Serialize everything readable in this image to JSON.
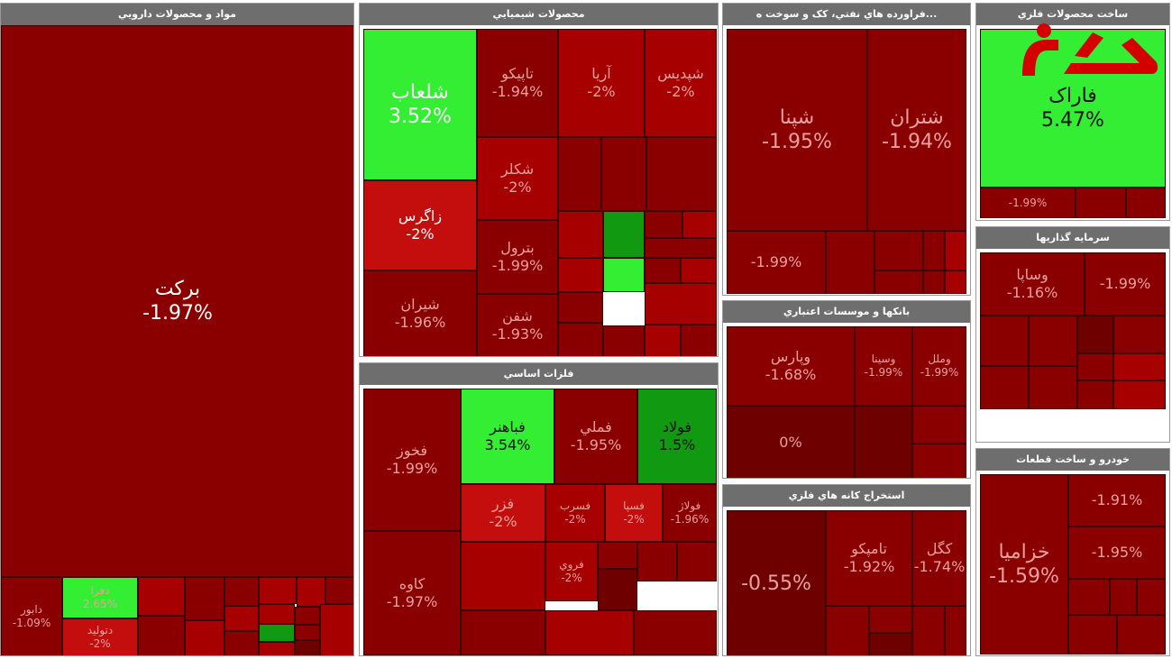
{
  "colors": {
    "deep_red": "#6e0000",
    "dark_red": "#8a0000",
    "red": "#a60000",
    "light_red": "#c40d0d",
    "light_green": "#33ee33",
    "green": "#119911",
    "dark_green": "#0d6b0d",
    "header_bg": "#6e6e6e",
    "label_bright": "#ffffff",
    "label_dim": "#e8a0a0"
  },
  "logo": {
    "icon": "red-brand-logo-icon"
  },
  "chart_data": {
    "type": "treemap",
    "unit": "%",
    "sectors": [
      {
        "name": "مواد و محصولات دارويي",
        "tiles": [
          {
            "symbol": "برکت",
            "change": -1.97,
            "color": "dark_red",
            "text": "bright"
          },
          {
            "symbol": "دابور",
            "change": -1.09,
            "color": "dark_red",
            "text": "dim"
          },
          {
            "symbol": "دفرا",
            "change": 2.65,
            "color": "light_green",
            "text": "dim"
          },
          {
            "symbol": "دتوليد",
            "change": -2,
            "color": "light_red",
            "text": "dim"
          },
          {
            "symbol": "",
            "change": null,
            "color": "red"
          },
          {
            "symbol": "",
            "change": null,
            "color": "dark_red"
          },
          {
            "symbol": "",
            "change": null,
            "color": "dark_red"
          },
          {
            "symbol": "",
            "change": null,
            "color": "red"
          },
          {
            "symbol": "",
            "change": null,
            "color": "dark_red"
          },
          {
            "symbol": "",
            "change": null,
            "color": "red"
          },
          {
            "symbol": "",
            "change": null,
            "color": "dark_red"
          },
          {
            "symbol": "",
            "change": null,
            "color": "red"
          },
          {
            "symbol": "",
            "change": null,
            "color": "red"
          },
          {
            "symbol": "",
            "change": null,
            "color": "dark_red"
          },
          {
            "symbol": "",
            "change": null,
            "color": "green"
          },
          {
            "symbol": "",
            "change": null,
            "color": "red"
          },
          {
            "symbol": "",
            "change": null,
            "color": "dark_red"
          },
          {
            "symbol": "",
            "change": null,
            "color": "deep_red"
          },
          {
            "symbol": "",
            "change": null,
            "color": "red"
          },
          {
            "symbol": "",
            "change": null,
            "color": "dark_red"
          },
          {
            "symbol": "",
            "change": null,
            "color": "red"
          }
        ]
      },
      {
        "name": "محصولات شيميايي",
        "tiles": [
          {
            "symbol": "شلعاب",
            "change": 3.52,
            "color": "light_green",
            "text": "bright"
          },
          {
            "symbol": "زاگرس",
            "change": -2,
            "color": "light_red",
            "text": "bright"
          },
          {
            "symbol": "شيران",
            "change": -1.96,
            "color": "dark_red",
            "text": "dim"
          },
          {
            "symbol": "تاپيکو",
            "change": -1.94,
            "color": "dark_red",
            "text": "dim"
          },
          {
            "symbol": "آريا",
            "change": -2,
            "color": "red",
            "text": "dim"
          },
          {
            "symbol": "شپديس",
            "change": -2,
            "color": "red",
            "text": "dim"
          },
          {
            "symbol": "شکلر",
            "change": -2,
            "color": "red",
            "text": "dim"
          },
          {
            "symbol": "بترول",
            "change": -1.99,
            "color": "dark_red",
            "text": "dim"
          },
          {
            "symbol": "شفن",
            "change": -1.93,
            "color": "dark_red",
            "text": "dim"
          },
          {
            "symbol": "",
            "change": null,
            "color": "dark_red"
          },
          {
            "symbol": "",
            "change": null,
            "color": "dark_red"
          },
          {
            "symbol": "",
            "change": null,
            "color": "dark_red"
          },
          {
            "symbol": "",
            "change": null,
            "color": "red"
          },
          {
            "symbol": "",
            "change": null,
            "color": "green"
          },
          {
            "symbol": "",
            "change": null,
            "color": "dark_red"
          },
          {
            "symbol": "",
            "change": null,
            "color": "red"
          },
          {
            "symbol": "",
            "change": null,
            "color": "dark_red"
          },
          {
            "symbol": "",
            "change": null,
            "color": "red"
          },
          {
            "symbol": "",
            "change": null,
            "color": "light_green"
          },
          {
            "symbol": "",
            "change": null,
            "color": "dark_red"
          },
          {
            "symbol": "",
            "change": null,
            "color": "red"
          },
          {
            "symbol": "",
            "change": null,
            "color": "dark_red"
          },
          {
            "symbol": "",
            "change": null,
            "color": "red"
          },
          {
            "symbol": "",
            "change": null,
            "color": "dark_red"
          },
          {
            "symbol": "",
            "change": null,
            "color": "dark_red"
          },
          {
            "symbol": "",
            "change": null,
            "color": "red"
          },
          {
            "symbol": "",
            "change": null,
            "color": "dark_red"
          }
        ]
      },
      {
        "name": "فلزات اساسي",
        "tiles": [
          {
            "symbol": "فخوز",
            "change": -1.99,
            "color": "dark_red",
            "text": "dim"
          },
          {
            "symbol": "کاوه",
            "change": -1.97,
            "color": "dark_red",
            "text": "dim"
          },
          {
            "symbol": "فباهنر",
            "change": 3.54,
            "color": "light_green",
            "text": "dark"
          },
          {
            "symbol": "فملي",
            "change": -1.95,
            "color": "dark_red",
            "text": "dim"
          },
          {
            "symbol": "فولاد",
            "change": 1.5,
            "color": "green",
            "text": "dark"
          },
          {
            "symbol": "فزر",
            "change": -2,
            "color": "light_red",
            "text": "dim"
          },
          {
            "symbol": "فسرب",
            "change": -2,
            "color": "red",
            "text": "dim"
          },
          {
            "symbol": "فروي",
            "change": -2,
            "color": "red",
            "text": "dim"
          },
          {
            "symbol": "",
            "change": null,
            "color": "dark_red"
          },
          {
            "symbol": "فسپا",
            "change": -2,
            "color": "light_red",
            "text": "dim"
          },
          {
            "symbol": "فولاژ",
            "change": -1.96,
            "color": "dark_red",
            "text": "dim"
          },
          {
            "symbol": "",
            "change": null,
            "color": "deep_red"
          },
          {
            "symbol": "",
            "change": null,
            "color": "dark_red"
          },
          {
            "symbol": "",
            "change": null,
            "color": "dark_red"
          },
          {
            "symbol": "",
            "change": null,
            "color": "red"
          },
          {
            "symbol": "",
            "change": null,
            "color": "dark_red"
          },
          {
            "symbol": "",
            "change": null,
            "color": "red"
          },
          {
            "symbol": "",
            "change": null,
            "color": "dark_red"
          }
        ]
      },
      {
        "name": "...فراورده هاي نفتي، کک و سوخت ه",
        "tiles": [
          {
            "symbol": "شپنا",
            "change": -1.95,
            "color": "dark_red",
            "text": "dim"
          },
          {
            "symbol": "شتران",
            "change": -1.94,
            "color": "dark_red",
            "text": "dim"
          },
          {
            "symbol": "",
            "change": -1.99,
            "color": "dark_red",
            "text": "dim"
          },
          {
            "symbol": "",
            "change": null,
            "color": "dark_red"
          },
          {
            "symbol": "",
            "change": null,
            "color": "dark_red"
          },
          {
            "symbol": "",
            "change": null,
            "color": "dark_red"
          },
          {
            "symbol": "",
            "change": null,
            "color": "red"
          },
          {
            "symbol": "",
            "change": null,
            "color": "dark_red"
          },
          {
            "symbol": "",
            "change": null,
            "color": "dark_red"
          },
          {
            "symbol": "",
            "change": null,
            "color": "red"
          }
        ]
      },
      {
        "name": "بانکها و موسسات اعتباري",
        "tiles": [
          {
            "symbol": "وپارس",
            "change": -1.68,
            "color": "dark_red",
            "text": "dim"
          },
          {
            "symbol": "",
            "change": 0,
            "color": "deep_red",
            "text": "dim"
          },
          {
            "symbol": "وسينا",
            "change": -1.99,
            "color": "dark_red",
            "text": "dim"
          },
          {
            "symbol": "",
            "change": null,
            "color": "deep_red"
          },
          {
            "symbol": "وملل",
            "change": -1.99,
            "color": "dark_red",
            "text": "dim"
          },
          {
            "symbol": "",
            "change": null,
            "color": "dark_red"
          },
          {
            "symbol": "",
            "change": null,
            "color": "dark_red"
          }
        ]
      },
      {
        "name": "استخراج کانه هاي فلزي",
        "tiles": [
          {
            "symbol": "",
            "change": -0.55,
            "color": "deep_red",
            "text": "dim"
          },
          {
            "symbol": "تامپکو",
            "change": -1.92,
            "color": "dark_red",
            "text": "dim"
          },
          {
            "symbol": "کگل",
            "change": -1.74,
            "color": "dark_red",
            "text": "dim"
          },
          {
            "symbol": "",
            "change": null,
            "color": "dark_red"
          },
          {
            "symbol": "",
            "change": null,
            "color": "dark_red"
          },
          {
            "symbol": "",
            "change": null,
            "color": "deep_red"
          },
          {
            "symbol": "",
            "change": null,
            "color": "dark_red"
          },
          {
            "symbol": "",
            "change": null,
            "color": "dark_red"
          }
        ]
      },
      {
        "name": "ساخت محصولات فلزي",
        "tiles": [
          {
            "symbol": "فاراک",
            "change": 5.47,
            "color": "light_green",
            "text": "dark"
          },
          {
            "symbol": "",
            "change": -1.99,
            "color": "dark_red",
            "text": "dim"
          },
          {
            "symbol": "",
            "change": null,
            "color": "dark_red"
          },
          {
            "symbol": "",
            "change": null,
            "color": "dark_red"
          }
        ]
      },
      {
        "name": "سرمايه گذاريها",
        "tiles": [
          {
            "symbol": "وساپا",
            "change": -1.16,
            "color": "dark_red",
            "text": "dim"
          },
          {
            "symbol": "",
            "change": -1.99,
            "color": "dark_red",
            "text": "dim"
          },
          {
            "symbol": "",
            "change": null,
            "color": "dark_red"
          },
          {
            "symbol": "",
            "change": null,
            "color": "dark_red"
          },
          {
            "symbol": "",
            "change": null,
            "color": "deep_red"
          },
          {
            "symbol": "",
            "change": null,
            "color": "dark_red"
          },
          {
            "symbol": "",
            "change": null,
            "color": "dark_red"
          },
          {
            "symbol": "",
            "change": null,
            "color": "dark_red"
          },
          {
            "symbol": "",
            "change": null,
            "color": "dark_red"
          },
          {
            "symbol": "",
            "change": null,
            "color": "red"
          },
          {
            "symbol": "",
            "change": null,
            "color": "dark_red"
          },
          {
            "symbol": "",
            "change": null,
            "color": "red"
          }
        ]
      },
      {
        "name": "خودرو و ساخت قطعات",
        "tiles": [
          {
            "symbol": "خزاميا",
            "change": -1.59,
            "color": "dark_red",
            "text": "dim"
          },
          {
            "symbol": "",
            "change": -1.91,
            "color": "dark_red",
            "text": "dim"
          },
          {
            "symbol": "",
            "change": -1.95,
            "color": "dark_red",
            "text": "dim"
          },
          {
            "symbol": "",
            "change": null,
            "color": "dark_red"
          },
          {
            "symbol": "",
            "change": null,
            "color": "dark_red"
          },
          {
            "symbol": "",
            "change": null,
            "color": "dark_red"
          },
          {
            "symbol": "",
            "change": null,
            "color": "dark_red"
          },
          {
            "symbol": "",
            "change": null,
            "color": "dark_red"
          }
        ]
      }
    ]
  }
}
